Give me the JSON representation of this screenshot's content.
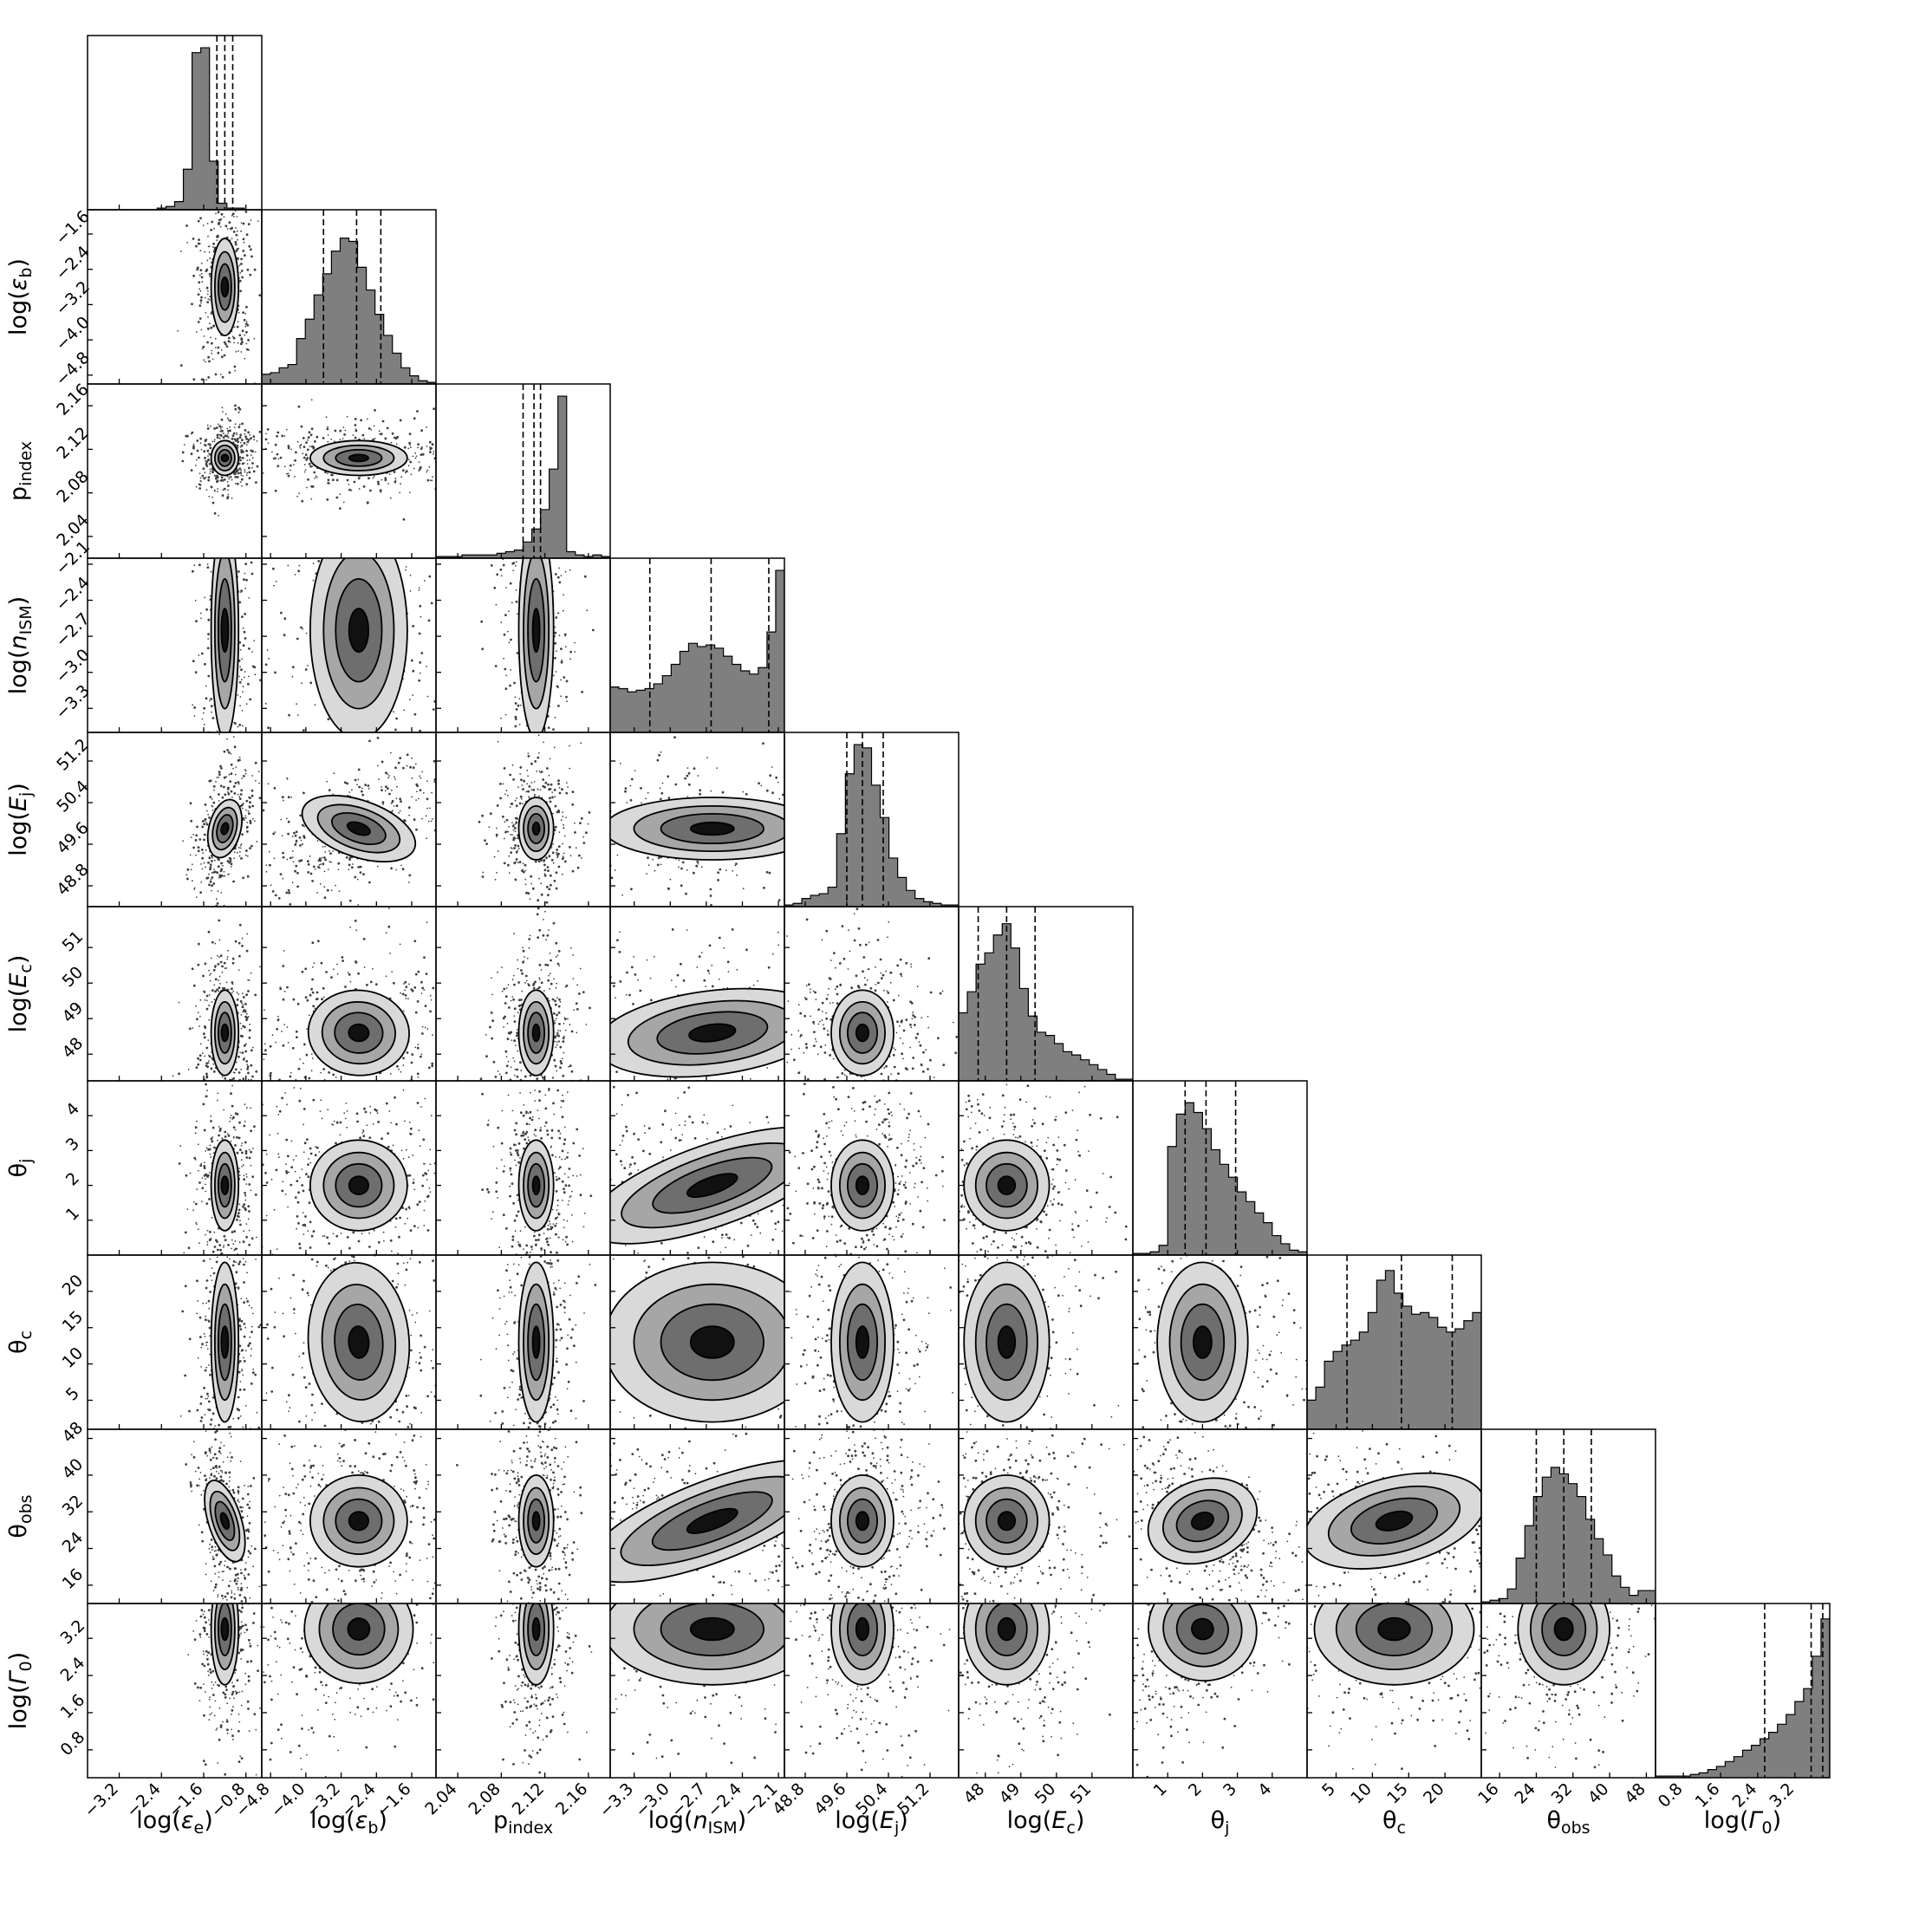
{
  "chart_data": {
    "type": "corner",
    "parameters": [
      {
        "label": "log(ε_e)",
        "label_tex": [
          "log(",
          "ε",
          "e",
          ")"
        ],
        "range": [
          -3.8,
          -0.5
        ],
        "ticks": [
          -3.2,
          -2.4,
          -1.6,
          -0.8
        ],
        "tick_labels": [
          "−3.2",
          "−2.4",
          "−1.6",
          "−0.8"
        ],
        "quantiles": [
          -1.35,
          -1.2,
          -1.05
        ],
        "center": -1.2,
        "width": 0.13
      },
      {
        "label": "log(ε_b)",
        "label_tex": [
          "log(",
          "ε",
          "b",
          ")"
        ],
        "range": [
          -5.0,
          -1.05
        ],
        "ticks": [
          -4.8,
          -4.0,
          -3.2,
          -2.4,
          -1.6
        ],
        "tick_labels": [
          "−4.8",
          "−4.0",
          "−3.2",
          "−2.4",
          "−1.6"
        ],
        "quantiles": [
          -3.6,
          -2.85,
          -2.3
        ],
        "center": -2.8,
        "width": 0.55
      },
      {
        "label": "p_index",
        "label_tex": [
          "p",
          "",
          "index",
          ""
        ],
        "range": [
          2.02,
          2.18
        ],
        "ticks": [
          2.04,
          2.08,
          2.12,
          2.16
        ],
        "tick_labels": [
          "2.04",
          "2.08",
          "2.12",
          "2.16"
        ],
        "quantiles": [
          2.1,
          2.11,
          2.116
        ],
        "center": 2.112,
        "width": 0.008
      },
      {
        "label": "log(n_ISM)",
        "label_tex": [
          "log(",
          "n",
          "ISM",
          ")"
        ],
        "range": [
          -3.5,
          -2.05
        ],
        "ticks": [
          -3.3,
          -3.0,
          -2.7,
          -2.4,
          -2.1
        ],
        "tick_labels": [
          "−3.3",
          "−3.0",
          "−2.7",
          "−2.4",
          "−2.1"
        ],
        "quantiles": [
          -3.17,
          -2.66,
          -2.18
        ],
        "center": -2.65,
        "width": 0.45
      },
      {
        "label": "log(E_j)",
        "label_tex": [
          "log(",
          "E",
          "j",
          ")"
        ],
        "range": [
          48.4,
          51.75
        ],
        "ticks": [
          48.8,
          49.6,
          50.4,
          51.2
        ],
        "tick_labels": [
          "48.8",
          "49.6",
          "50.4",
          "51.2"
        ],
        "quantiles": [
          49.6,
          49.9,
          50.3
        ],
        "center": 49.9,
        "width": 0.3
      },
      {
        "label": "log(E_c)",
        "label_tex": [
          "log(",
          "E",
          "c",
          ")"
        ],
        "range": [
          47.25,
          52.15
        ],
        "ticks": [
          48,
          49,
          50,
          51
        ],
        "tick_labels": [
          "48",
          "49",
          "50",
          "51"
        ],
        "quantiles": [
          47.8,
          48.6,
          49.4
        ],
        "center": 48.6,
        "width": 0.6
      },
      {
        "label": "θ_j",
        "label_tex": [
          "θ",
          "",
          "j",
          ""
        ],
        "range": [
          0.0,
          5.0
        ],
        "ticks": [
          1,
          2,
          3,
          4
        ],
        "tick_labels": [
          "1",
          "2",
          "3",
          "4"
        ],
        "quantiles": [
          1.5,
          2.1,
          2.95
        ],
        "center": 2.0,
        "width": 0.65
      },
      {
        "label": "θ_c",
        "label_tex": [
          "θ",
          "",
          "c",
          ""
        ],
        "range": [
          1.0,
          25.0
        ],
        "ticks": [
          5,
          10,
          15,
          20
        ],
        "tick_labels": [
          "5",
          "10",
          "15",
          "20"
        ],
        "quantiles": [
          6.5,
          14.0,
          21.0
        ],
        "center": 13.0,
        "width": 5.5
      },
      {
        "label": "θ_obs",
        "label_tex": [
          "θ",
          "",
          "obs",
          ""
        ],
        "range": [
          12,
          50
        ],
        "ticks": [
          16,
          24,
          32,
          40,
          48
        ],
        "tick_labels": [
          "16",
          "24",
          "32",
          "40",
          "48"
        ],
        "quantiles": [
          24,
          30,
          36
        ],
        "center": 30,
        "width": 5
      },
      {
        "label": "log(Γ_0)",
        "label_tex": [
          "log(",
          "Γ",
          "0",
          ")"
        ],
        "range": [
          0.2,
          3.95
        ],
        "ticks": [
          0.8,
          1.6,
          2.4,
          3.2
        ],
        "tick_labels": [
          "0.8",
          "1.6",
          "2.4",
          "3.2"
        ],
        "quantiles": [
          2.55,
          3.55,
          3.8
        ],
        "center": 3.4,
        "width": 0.6
      }
    ],
    "histograms": [
      {
        "param": "log(ε_e)",
        "bins": 20,
        "values": [
          0,
          0,
          0,
          0,
          0,
          0,
          0,
          0,
          0.01,
          0.02,
          0.05,
          0.25,
          0.97,
          1.0,
          0.3,
          0.04,
          0.01,
          0.01,
          0,
          0
        ]
      },
      {
        "param": "log(ε_b)",
        "bins": 20,
        "values": [
          0.06,
          0.07,
          0.1,
          0.12,
          0.28,
          0.4,
          0.55,
          0.68,
          0.82,
          0.9,
          0.88,
          0.72,
          0.58,
          0.43,
          0.3,
          0.19,
          0.1,
          0.05,
          0.02,
          0.01
        ]
      },
      {
        "param": "p_index",
        "bins": 20,
        "values": [
          0.01,
          0.01,
          0.01,
          0.02,
          0.02,
          0.02,
          0.02,
          0.03,
          0.04,
          0.05,
          0.1,
          0.18,
          0.3,
          0.55,
          1.0,
          0.04,
          0.02,
          0.01,
          0.02,
          0.01
        ]
      },
      {
        "param": "log(n_ISM)",
        "bins": 20,
        "values": [
          0.28,
          0.27,
          0.25,
          0.26,
          0.27,
          0.3,
          0.35,
          0.42,
          0.5,
          0.55,
          0.53,
          0.54,
          0.52,
          0.47,
          0.42,
          0.38,
          0.36,
          0.4,
          0.62,
          1.0
        ]
      },
      {
        "param": "log(E_j)",
        "bins": 20,
        "values": [
          0.01,
          0.02,
          0.05,
          0.07,
          0.08,
          0.12,
          0.45,
          0.82,
          1.0,
          0.98,
          0.75,
          0.55,
          0.3,
          0.18,
          0.1,
          0.05,
          0.03,
          0.02,
          0.01,
          0.01
        ]
      },
      {
        "param": "log(E_c)",
        "bins": 20,
        "values": [
          0.42,
          0.55,
          0.72,
          0.79,
          0.9,
          0.97,
          0.82,
          0.57,
          0.4,
          0.3,
          0.28,
          0.23,
          0.18,
          0.16,
          0.13,
          0.1,
          0.07,
          0.04,
          0.01,
          0.01
        ]
      },
      {
        "param": "θ_j",
        "bins": 20,
        "values": [
          0.01,
          0.01,
          0.02,
          0.06,
          0.67,
          0.87,
          0.94,
          0.88,
          0.78,
          0.65,
          0.56,
          0.48,
          0.39,
          0.33,
          0.26,
          0.2,
          0.12,
          0.07,
          0.03,
          0.02
        ]
      },
      {
        "param": "θ_c",
        "bins": 20,
        "values": [
          0.18,
          0.26,
          0.42,
          0.48,
          0.52,
          0.55,
          0.6,
          0.72,
          0.92,
          0.98,
          0.84,
          0.76,
          0.71,
          0.72,
          0.69,
          0.63,
          0.6,
          0.62,
          0.67,
          0.72
        ]
      },
      {
        "param": "θ_obs",
        "bins": 20,
        "values": [
          0.01,
          0.02,
          0.03,
          0.09,
          0.28,
          0.48,
          0.66,
          0.78,
          0.84,
          0.8,
          0.74,
          0.66,
          0.52,
          0.4,
          0.3,
          0.17,
          0.1,
          0.05,
          0.08,
          0.08
        ]
      },
      {
        "param": "log(Γ_0)",
        "bins": 20,
        "values": [
          0.01,
          0.01,
          0.01,
          0.01,
          0.02,
          0.03,
          0.05,
          0.07,
          0.1,
          0.13,
          0.17,
          0.2,
          0.24,
          0.28,
          0.33,
          0.39,
          0.47,
          0.55,
          0.75,
          0.98
        ]
      }
    ],
    "quantile_lines": "dashed",
    "contour_levels": 4,
    "grid": false,
    "legend": "none"
  }
}
